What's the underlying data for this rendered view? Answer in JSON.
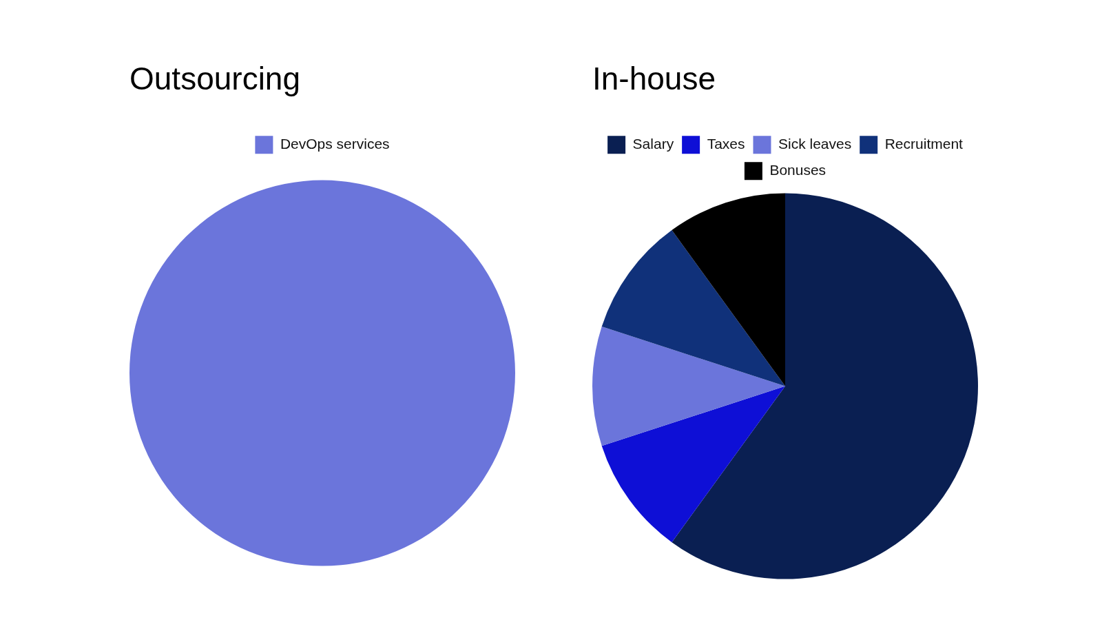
{
  "chart_data": [
    {
      "type": "pie",
      "title": "Outsourcing",
      "categories": [
        "DevOps services"
      ],
      "values": [
        100
      ],
      "colors": [
        "#6b75db"
      ],
      "legend": "top"
    },
    {
      "type": "pie",
      "title": "In-house",
      "categories": [
        "Salary",
        "Taxes",
        "Sick leaves",
        "Recruitment",
        "Bonuses"
      ],
      "values": [
        60,
        10,
        10,
        10,
        10
      ],
      "colors": [
        "#0a1f52",
        "#0e0fd6",
        "#6b75db",
        "#10317a",
        "#000000"
      ],
      "legend": "top"
    }
  ]
}
